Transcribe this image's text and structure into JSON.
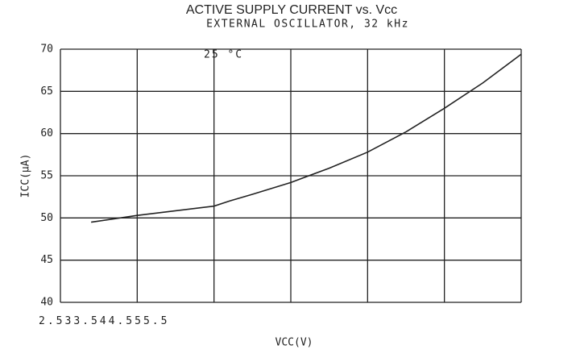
{
  "chart_data": {
    "type": "line",
    "title": "ACTIVE SUPPLY CURRENT vs. Vcc",
    "subtitle": "EXTERNAL OSCILLATOR, 32 kHz",
    "annotation": "25 °C",
    "x_label": "VCC(V)",
    "y_label": "ICC(µA)",
    "x": [
      2.7,
      3.0,
      3.5,
      3.6,
      3.75,
      4.0,
      4.25,
      4.5,
      4.75,
      5.0,
      5.25,
      5.5
    ],
    "series": [
      {
        "name": "25 °C",
        "color": "#222222",
        "values": [
          49.5,
          50.3,
          51.4,
          52.0,
          52.8,
          54.2,
          55.9,
          57.8,
          60.2,
          63.0,
          66.0,
          69.4
        ]
      }
    ],
    "xlim": [
      2.5,
      5.5
    ],
    "xticks": [
      2.5,
      3,
      3.5,
      4,
      4.5,
      5,
      5.5
    ],
    "ylim": [
      40,
      70
    ],
    "yticks": [
      40,
      45,
      50,
      55,
      60,
      65,
      70
    ],
    "grid": true
  }
}
